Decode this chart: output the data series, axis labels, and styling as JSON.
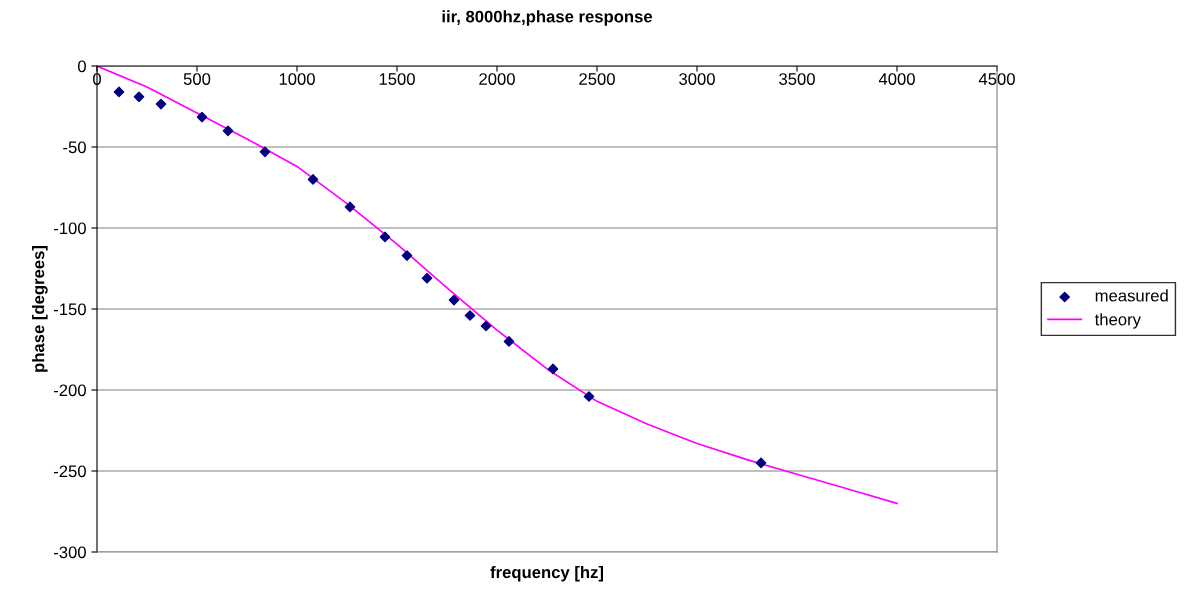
{
  "chart_data": {
    "type": "scatter",
    "title": "iir, 8000hz,phase response",
    "xlabel": "frequency [hz]",
    "ylabel": "phase [degrees]",
    "xlim": [
      0,
      4500
    ],
    "xticks": [
      0,
      500,
      1000,
      1500,
      2000,
      2500,
      3000,
      3500,
      4000,
      4500
    ],
    "ylim": [
      -300,
      0
    ],
    "yticks": [
      -300,
      -250,
      -200,
      -150,
      -100,
      -50,
      0
    ],
    "grid": "y",
    "legend": "right",
    "series": [
      {
        "name": "measured",
        "marker": "diamond",
        "color": "#000080",
        "x": [
          110,
          210,
          320,
          525,
          655,
          840,
          1080,
          1265,
          1440,
          1550,
          1650,
          1785,
          1865,
          1945,
          2060,
          2280,
          2460,
          3320
        ],
        "values": [
          -16,
          -19,
          -23.5,
          -31.5,
          -40,
          -53,
          -70,
          -87,
          -105.5,
          -117,
          -131,
          -144.5,
          -154,
          -160.5,
          -170,
          -187,
          -204,
          -245
        ]
      },
      {
        "name": "theory",
        "type": "line",
        "marker": "none",
        "line_style": "solid",
        "color": "#ff00ff",
        "x": [
          0,
          250,
          500,
          750,
          1000,
          1250,
          1500,
          1750,
          2000,
          2250,
          2500,
          2750,
          3000,
          3250,
          3500,
          3750,
          4000
        ],
        "values": [
          0,
          -13,
          -29,
          -45,
          -62,
          -85,
          -110,
          -137,
          -163,
          -187,
          -207,
          -221,
          -233,
          -243,
          -252,
          -261,
          -270
        ]
      }
    ]
  }
}
